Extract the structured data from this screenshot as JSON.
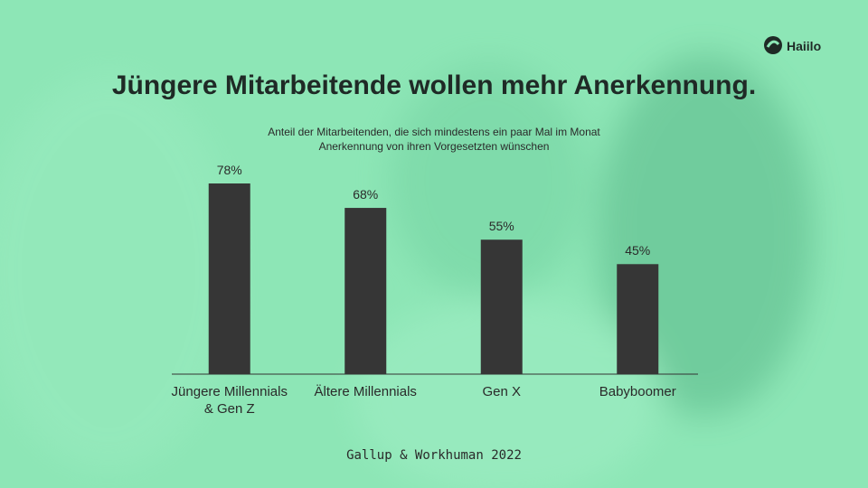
{
  "chart_data": {
    "type": "bar",
    "title": "Jüngere Mitarbeitende wollen mehr Anerkennung.",
    "subtitle": [
      "Anteil der Mitarbeitenden,  die sich mindestens  ein paar Mal im Monat",
      "Anerkennung  von ihren Vorgesetzten  wünschen"
    ],
    "categories": [
      "Jüngere Millennials\n& Gen Z",
      "Ältere Millennials",
      "Gen X",
      "Babyboomer"
    ],
    "values": [
      78,
      68,
      55,
      45
    ],
    "value_labels": [
      "78%",
      "68%",
      "55%",
      "45%"
    ],
    "color": "#363636",
    "source": "Gallup & Workhuman 2022"
  },
  "logo": "Haiilo"
}
